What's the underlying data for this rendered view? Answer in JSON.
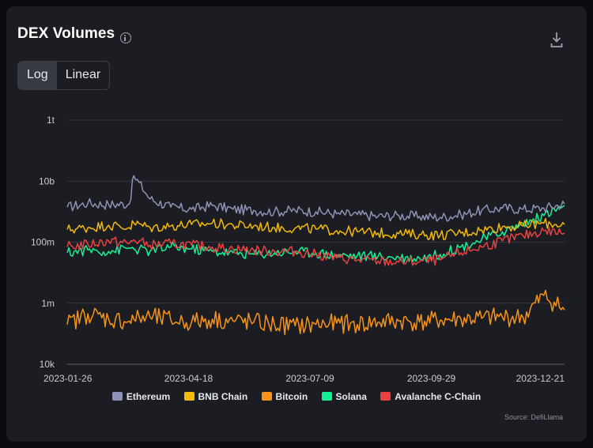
{
  "title": "DEX Volumes",
  "icons": {
    "info": "info-circle-icon",
    "download": "download-icon"
  },
  "scale_toggle": {
    "options": [
      "Log",
      "Linear"
    ],
    "selected": "Log"
  },
  "source": "Source: DefiLlama",
  "chart_data": {
    "type": "line",
    "title": "DEX Volumes",
    "xlabel": "",
    "ylabel": "",
    "y_scale": "log",
    "ylim": [
      10000,
      1000000000000
    ],
    "y_ticks": [
      {
        "value": 1000000000000,
        "label": "1t"
      },
      {
        "value": 10000000000,
        "label": "10b"
      },
      {
        "value": 100000000,
        "label": "100m"
      },
      {
        "value": 1000000,
        "label": "1m"
      },
      {
        "value": 10000,
        "label": "10k"
      }
    ],
    "x_range": [
      "2023-01-26",
      "2023-12-28"
    ],
    "x_ticks": [
      "2023-01-26",
      "2023-04-18",
      "2023-07-09",
      "2023-09-29",
      "2023-12-21"
    ],
    "grid": true,
    "legend_position": "bottom-center",
    "x": [
      "2023-01-26",
      "2023-02-09",
      "2023-02-23",
      "2023-03-09",
      "2023-03-12",
      "2023-03-23",
      "2023-04-06",
      "2023-04-20",
      "2023-05-04",
      "2023-05-18",
      "2023-06-01",
      "2023-06-15",
      "2023-06-29",
      "2023-07-13",
      "2023-07-27",
      "2023-08-10",
      "2023-08-24",
      "2023-09-07",
      "2023-09-21",
      "2023-10-05",
      "2023-10-19",
      "2023-11-02",
      "2023-11-16",
      "2023-11-30",
      "2023-12-14",
      "2023-12-28"
    ],
    "series": [
      {
        "name": "Ethereum",
        "color": "#8e92b4",
        "values": [
          1400000000.0,
          1900000000.0,
          1700000000.0,
          1800000000.0,
          15000000000.0,
          2600000000.0,
          1400000000.0,
          1200000000.0,
          1600000000.0,
          1200000000.0,
          1100000000.0,
          1000000000.0,
          1100000000.0,
          1000000000.0,
          850000000.0,
          800000000.0,
          700000000.0,
          750000000.0,
          700000000.0,
          650000000.0,
          800000000.0,
          1100000000.0,
          1300000000.0,
          1200000000.0,
          1300000000.0,
          1800000000.0
        ]
      },
      {
        "name": "BNB Chain",
        "color": "#f0b90b",
        "values": [
          260000000.0,
          300000000.0,
          360000000.0,
          300000000.0,
          420000000.0,
          300000000.0,
          340000000.0,
          380000000.0,
          420000000.0,
          360000000.0,
          340000000.0,
          300000000.0,
          290000000.0,
          270000000.0,
          240000000.0,
          220000000.0,
          200000000.0,
          190000000.0,
          180000000.0,
          170000000.0,
          200000000.0,
          250000000.0,
          320000000.0,
          340000000.0,
          420000000.0,
          380000000.0
        ]
      },
      {
        "name": "Bitcoin",
        "color": "#f7931a",
        "values": [
          200000.0,
          450000.0,
          300000.0,
          260000.0,
          300000.0,
          350000.0,
          280000.0,
          240000.0,
          300000.0,
          260000.0,
          240000.0,
          200000.0,
          180000.0,
          200000.0,
          220000.0,
          200000.0,
          240000.0,
          260000.0,
          240000.0,
          280000.0,
          300000.0,
          320000.0,
          350000.0,
          340000.0,
          1800000.0,
          600000.0
        ]
      },
      {
        "name": "Solana",
        "color": "#14f195",
        "values": [
          45000000.0,
          55000000.0,
          50000000.0,
          65000000.0,
          60000000.0,
          50000000.0,
          70000000.0,
          60000000.0,
          50000000.0,
          45000000.0,
          40000000.0,
          45000000.0,
          50000000.0,
          45000000.0,
          38000000.0,
          36000000.0,
          34000000.0,
          32000000.0,
          30000000.0,
          40000000.0,
          70000000.0,
          120000000.0,
          220000000.0,
          400000000.0,
          750000000.0,
          1600000000.0
        ]
      },
      {
        "name": "Avalanche C-Chain",
        "color": "#e84142",
        "values": [
          70000000.0,
          85000000.0,
          110000000.0,
          90000000.0,
          120000000.0,
          80000000.0,
          90000000.0,
          80000000.0,
          70000000.0,
          60000000.0,
          55000000.0,
          50000000.0,
          50000000.0,
          40000000.0,
          30000000.0,
          26000000.0,
          24000000.0,
          22000000.0,
          23000000.0,
          26000000.0,
          45000000.0,
          70000000.0,
          110000000.0,
          160000000.0,
          240000000.0,
          200000000.0
        ]
      }
    ]
  }
}
